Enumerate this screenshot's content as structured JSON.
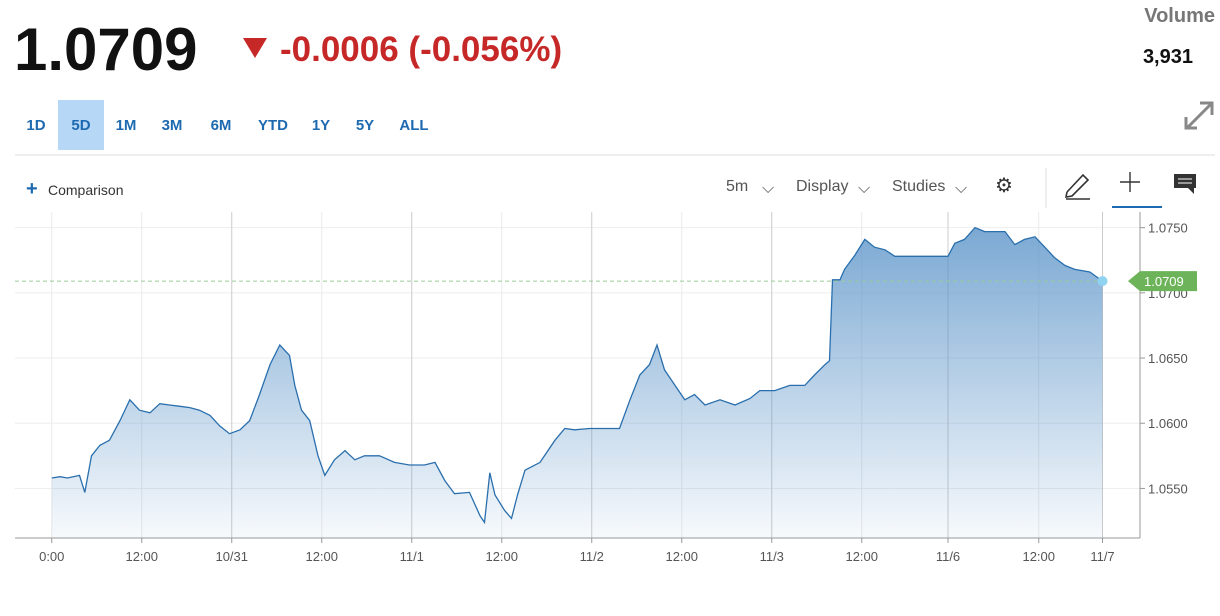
{
  "header": {
    "price": "1.0709",
    "change": "-0.0006 (-0.056%)",
    "volume_label": "Volume",
    "volume": "3,931"
  },
  "ranges": [
    "1D",
    "5D",
    "1M",
    "3M",
    "6M",
    "YTD",
    "1Y",
    "5Y",
    "ALL"
  ],
  "selected_range": "5D",
  "toolbar": {
    "comparison": "Comparison",
    "interval": "5m",
    "display": "Display",
    "studies": "Studies"
  },
  "chart_data": {
    "type": "line",
    "color": "#2a6fad",
    "x": [
      0,
      1.1,
      2.1,
      3.7,
      4.4,
      5.3,
      6.4,
      7.7,
      9.1,
      10.4,
      11.7,
      13.1,
      14.4,
      15.7,
      17.1,
      18.4,
      19.7,
      21.1,
      22.4,
      23.7,
      25.1,
      26.4,
      27.7,
      29.1,
      30.4,
      31.7,
      32.4,
      33.3,
      34.4,
      35.5,
      36.4,
      37.7,
      39.1,
      40.4,
      41.7,
      43.7,
      45.7,
      47.7,
      49.7,
      51.1,
      52.4,
      53.7,
      55.7,
      57.1,
      57.7,
      58.4,
      59.1,
      60.4,
      61.3,
      62.1,
      63.1,
      65.1,
      67.1,
      68.4,
      69.7,
      71.7,
      73.7,
      75.7,
      77.1,
      78.4,
      79.7,
      80.7,
      81.7,
      83.1,
      84.4,
      85.7,
      87.1,
      89.1,
      91.1,
      93.1,
      94.4,
      96.4,
      98.4,
      100.4,
      101.7,
      103.1,
      103.7,
      104.1,
      105.1,
      105.7,
      107.1,
      108.4,
      109.7,
      111.1,
      112.4,
      114.4,
      117.1,
      119.5,
      120.4,
      121.7,
      123.1,
      124.4,
      125.7,
      127.1,
      128.4,
      129.7,
      131.1,
      132.4,
      133.7,
      135.1,
      136.4,
      138.4,
      140.1
    ],
    "values": [
      1.0558,
      1.0559,
      1.0558,
      1.056,
      1.0547,
      1.0575,
      1.0583,
      1.0587,
      1.0602,
      1.0618,
      1.061,
      1.0608,
      1.0615,
      1.0614,
      1.0613,
      1.0612,
      1.061,
      1.0606,
      1.0598,
      1.0592,
      1.0595,
      1.0602,
      1.0622,
      1.0645,
      1.066,
      1.0652,
      1.0629,
      1.061,
      1.0602,
      1.0575,
      1.056,
      1.0572,
      1.0579,
      1.0572,
      1.0575,
      1.0575,
      1.057,
      1.0568,
      1.0568,
      1.057,
      1.0556,
      1.0546,
      1.0547,
      1.0529,
      1.0524,
      1.0562,
      1.0545,
      1.0533,
      1.0527,
      1.0545,
      1.0564,
      1.057,
      1.0587,
      1.0596,
      1.0595,
      1.0596,
      1.0596,
      1.0596,
      1.0618,
      1.0637,
      1.0645,
      1.066,
      1.0641,
      1.0629,
      1.0618,
      1.0622,
      1.0614,
      1.0618,
      1.0614,
      1.0619,
      1.0625,
      1.0625,
      1.0629,
      1.0629,
      1.0637,
      1.0645,
      1.0648,
      1.071,
      1.071,
      1.0718,
      1.0729,
      1.0741,
      1.0735,
      1.0733,
      1.0728,
      1.0728,
      1.0728,
      1.0728,
      1.0738,
      1.0741,
      1.075,
      1.0747,
      1.0747,
      1.0747,
      1.0737,
      1.0741,
      1.0743,
      1.0735,
      1.0727,
      1.0721,
      1.0718,
      1.0716,
      1.0709
    ],
    "xlim": [
      -4.9,
      145.1
    ],
    "xticks": [
      {
        "value": 0,
        "label": "0:00"
      },
      {
        "value": 12,
        "label": "12:00"
      },
      {
        "value": 24,
        "label": "10/31"
      },
      {
        "value": 36,
        "label": "12:00"
      },
      {
        "value": 48,
        "label": "11/1"
      },
      {
        "value": 60,
        "label": "12:00"
      },
      {
        "value": 72,
        "label": "11/2"
      },
      {
        "value": 84,
        "label": "12:00"
      },
      {
        "value": 96,
        "label": "11/3"
      },
      {
        "value": 108,
        "label": "12:00"
      },
      {
        "value": 119.5,
        "label": "11/6"
      },
      {
        "value": 131.6,
        "label": "12:00"
      },
      {
        "value": 140.1,
        "label": "11/7"
      }
    ],
    "ylim": [
      1.0512,
      1.0762
    ],
    "yticks": [
      {
        "value": 1.055,
        "label": "1.0550"
      },
      {
        "value": 1.06,
        "label": "1.0600"
      },
      {
        "value": 1.065,
        "label": "1.0650"
      },
      {
        "value": 1.07,
        "label": "1.0700"
      },
      {
        "value": 1.075,
        "label": "1.0750"
      }
    ],
    "grid": true
  }
}
